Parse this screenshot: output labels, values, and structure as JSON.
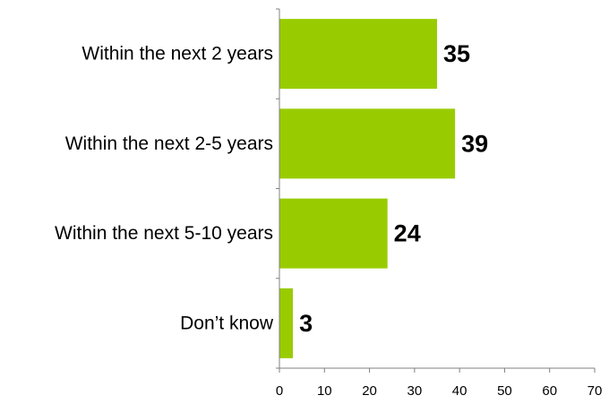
{
  "chart_data": {
    "type": "bar",
    "orientation": "horizontal",
    "categories": [
      "Within the next 2 years",
      "Within the next 2-5 years",
      "Within the next 5-10 years",
      "Don’t know"
    ],
    "values": [
      35,
      39,
      24,
      3
    ],
    "data_labels": [
      "35",
      "39",
      "24",
      "3"
    ],
    "xlim": [
      0,
      70
    ],
    "x_ticks": [
      "0",
      "10",
      "20",
      "30",
      "40",
      "50",
      "60",
      "70"
    ],
    "title": "",
    "xlabel": "",
    "ylabel": "",
    "grid": false,
    "legend": "none",
    "bar_color": "#99CC00",
    "axis_color": "#808080"
  }
}
